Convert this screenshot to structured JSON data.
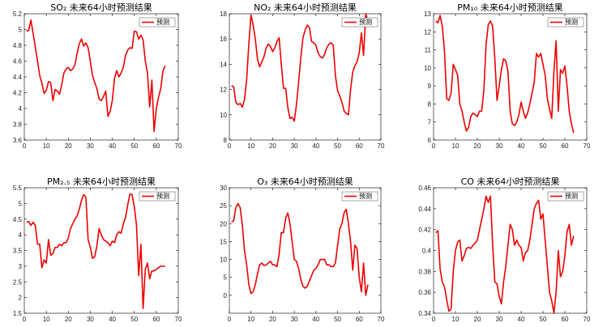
{
  "figure": {
    "background": "#ffffff",
    "line_color": "#ee0000",
    "axis_color": "#000000"
  },
  "chart_data": [
    {
      "type": "line",
      "title": "SO₂ 未来64小时预测结果",
      "xlim": [
        0,
        70
      ],
      "ylim": [
        3.6,
        5.2
      ],
      "xticks": [
        0,
        10,
        20,
        30,
        40,
        50,
        60,
        70
      ],
      "yticks": [
        3.6,
        3.8,
        4,
        4.2,
        4.4,
        4.6,
        4.8,
        5,
        5.2
      ],
      "legend": "预测",
      "legend_position": "top-right",
      "grid": false,
      "series": [
        {
          "name": "预测",
          "x": [
            1,
            2,
            3,
            4,
            5,
            6,
            7,
            8,
            9,
            10,
            11,
            12,
            13,
            14,
            15,
            16,
            17,
            18,
            19,
            20,
            21,
            22,
            23,
            24,
            25,
            26,
            27,
            28,
            29,
            30,
            31,
            32,
            33,
            34,
            35,
            36,
            37,
            38,
            39,
            40,
            41,
            42,
            43,
            44,
            45,
            46,
            47,
            48,
            49,
            50,
            51,
            52,
            53,
            54,
            55,
            56,
            57,
            58,
            59,
            60,
            61,
            62,
            63,
            64
          ],
          "values": [
            4.98,
            4.99,
            5.12,
            4.95,
            4.78,
            4.6,
            4.42,
            4.32,
            4.19,
            4.23,
            4.34,
            4.33,
            4.1,
            4.24,
            4.22,
            4.18,
            4.3,
            4.45,
            4.5,
            4.52,
            4.48,
            4.5,
            4.55,
            4.7,
            4.82,
            4.88,
            4.79,
            4.83,
            4.77,
            4.6,
            4.42,
            4.33,
            4.25,
            4.12,
            4.1,
            4.15,
            4.22,
            3.9,
            3.96,
            4.1,
            4.38,
            4.48,
            4.4,
            4.45,
            4.52,
            4.67,
            4.74,
            4.77,
            4.76,
            4.98,
            4.97,
            4.88,
            4.93,
            4.87,
            4.6,
            4.45,
            4.02,
            4.36,
            3.71,
            4.0,
            4.14,
            4.25,
            4.47,
            4.54
          ]
        }
      ]
    },
    {
      "type": "line",
      "title": "NO₂ 未来64小时预测结果",
      "xlim": [
        0,
        70
      ],
      "ylim": [
        8,
        18
      ],
      "xticks": [
        0,
        10,
        20,
        30,
        40,
        50,
        60,
        70
      ],
      "yticks": [
        8,
        10,
        12,
        14,
        16,
        18
      ],
      "legend": "预测",
      "legend_position": "top-right",
      "grid": false,
      "series": [
        {
          "name": "预测",
          "x": [
            1,
            2,
            3,
            4,
            5,
            6,
            7,
            8,
            9,
            10,
            11,
            12,
            13,
            14,
            15,
            16,
            17,
            18,
            19,
            20,
            21,
            22,
            23,
            24,
            25,
            26,
            27,
            28,
            29,
            30,
            31,
            32,
            33,
            34,
            35,
            36,
            37,
            38,
            39,
            40,
            41,
            42,
            43,
            44,
            45,
            46,
            47,
            48,
            49,
            50,
            51,
            52,
            53,
            54,
            55,
            56,
            57,
            58,
            59,
            60,
            61,
            62,
            63,
            64
          ],
          "values": [
            12.3,
            12.2,
            11.0,
            10.8,
            10.9,
            10.6,
            11.2,
            12.8,
            15.6,
            17.9,
            17.1,
            16.0,
            14.4,
            13.8,
            14.2,
            14.6,
            15.3,
            15.6,
            15.4,
            15.0,
            15.3,
            15.8,
            16.1,
            14.0,
            12.1,
            12.1,
            10.6,
            9.7,
            9.8,
            9.5,
            10.8,
            12.6,
            14.5,
            16.1,
            16.7,
            17.1,
            16.9,
            15.8,
            15.7,
            15.5,
            14.9,
            14.6,
            14.5,
            14.8,
            15.3,
            15.6,
            15.7,
            15.5,
            13.1,
            11.9,
            11.5,
            11.0,
            10.3,
            10.1,
            10.0,
            12.0,
            13.4,
            13.9,
            14.2,
            14.9,
            16.5,
            14.7,
            18.0,
            17.4
          ]
        }
      ]
    },
    {
      "type": "line",
      "title": "PM₁₀ 未来64小时预测结果",
      "xlim": [
        0,
        70
      ],
      "ylim": [
        6,
        13
      ],
      "xticks": [
        0,
        10,
        20,
        30,
        40,
        50,
        60,
        70
      ],
      "yticks": [
        6,
        7,
        8,
        9,
        10,
        11,
        12,
        13
      ],
      "legend": "预测",
      "legend_position": "top-right",
      "grid": false,
      "series": [
        {
          "name": "预测",
          "x": [
            1,
            2,
            3,
            4,
            5,
            6,
            7,
            8,
            9,
            10,
            11,
            12,
            13,
            14,
            15,
            16,
            17,
            18,
            19,
            20,
            21,
            22,
            23,
            24,
            25,
            26,
            27,
            28,
            29,
            30,
            31,
            32,
            33,
            34,
            35,
            36,
            37,
            38,
            39,
            40,
            41,
            42,
            43,
            44,
            45,
            46,
            47,
            48,
            49,
            50,
            51,
            52,
            53,
            54,
            55,
            56,
            57,
            58,
            59,
            60,
            61,
            62,
            63,
            64
          ],
          "values": [
            12.6,
            12.5,
            12.9,
            12.3,
            10.9,
            8.3,
            8.2,
            8.6,
            10.2,
            9.9,
            9.6,
            8.0,
            7.6,
            7.0,
            6.5,
            6.7,
            7.3,
            7.5,
            7.4,
            7.3,
            7.6,
            7.6,
            8.8,
            11.3,
            12.4,
            12.6,
            12.3,
            10.5,
            8.2,
            9.0,
            9.9,
            10.5,
            10.4,
            9.8,
            7.6,
            6.9,
            6.8,
            7.0,
            7.4,
            8.1,
            7.6,
            7.2,
            7.5,
            8.0,
            8.6,
            9.2,
            10.8,
            10.6,
            10.8,
            10.2,
            9.6,
            8.3,
            7.7,
            7.2,
            9.8,
            11.5,
            7.6,
            9.9,
            9.7,
            10.1,
            9.0,
            7.6,
            6.9,
            6.4
          ]
        }
      ]
    },
    {
      "type": "line",
      "title": "PM₂.₅ 未来64小时预测结果",
      "xlim": [
        0,
        70
      ],
      "ylim": [
        1.5,
        5.5
      ],
      "xticks": [
        0,
        10,
        20,
        30,
        40,
        50,
        60,
        70
      ],
      "yticks": [
        1.5,
        2,
        2.5,
        3,
        3.5,
        4,
        4.5,
        5,
        5.5
      ],
      "legend": "预测",
      "legend_position": "top-right",
      "grid": false,
      "series": [
        {
          "name": "预测",
          "x": [
            1,
            2,
            3,
            4,
            5,
            6,
            7,
            8,
            9,
            10,
            11,
            12,
            13,
            14,
            15,
            16,
            17,
            18,
            19,
            20,
            21,
            22,
            23,
            24,
            25,
            26,
            27,
            28,
            29,
            30,
            31,
            32,
            33,
            34,
            35,
            36,
            37,
            38,
            39,
            40,
            41,
            42,
            43,
            44,
            45,
            46,
            47,
            48,
            49,
            50,
            51,
            52,
            53,
            54,
            55,
            56,
            57,
            58,
            59,
            60,
            61,
            62,
            63,
            64
          ],
          "values": [
            4.42,
            4.42,
            4.3,
            4.4,
            4.3,
            3.7,
            3.7,
            2.95,
            3.2,
            3.1,
            3.85,
            3.35,
            3.4,
            3.6,
            3.6,
            3.7,
            3.65,
            3.75,
            3.75,
            3.9,
            4.2,
            4.35,
            4.5,
            4.6,
            4.82,
            5.1,
            5.28,
            5.2,
            3.85,
            3.6,
            3.25,
            3.3,
            3.65,
            4.2,
            4.0,
            3.85,
            3.8,
            3.75,
            3.65,
            3.8,
            3.75,
            4.0,
            4.1,
            4.05,
            4.35,
            4.55,
            4.95,
            5.3,
            5.28,
            4.9,
            4.3,
            2.7,
            3.7,
            1.65,
            2.9,
            3.1,
            2.6,
            2.85,
            2.85,
            2.9,
            2.95,
            3.0,
            3.0,
            3.0
          ]
        }
      ]
    },
    {
      "type": "line",
      "title": "O₃ 未来64小时预测结果",
      "xlim": [
        0,
        70
      ],
      "ylim": [
        -5,
        30
      ],
      "xticks": [
        0,
        10,
        20,
        30,
        40,
        50,
        60,
        70
      ],
      "yticks": [
        0,
        5,
        10,
        15,
        20,
        25,
        30
      ],
      "legend": "预测",
      "legend_position": "top-right",
      "grid": false,
      "series": [
        {
          "name": "预测",
          "x": [
            1,
            2,
            3,
            4,
            5,
            6,
            7,
            8,
            9,
            10,
            11,
            12,
            13,
            14,
            15,
            16,
            17,
            18,
            19,
            20,
            21,
            22,
            23,
            24,
            25,
            26,
            27,
            28,
            29,
            30,
            31,
            32,
            33,
            34,
            35,
            36,
            37,
            38,
            39,
            40,
            41,
            42,
            43,
            44,
            45,
            46,
            47,
            48,
            49,
            50,
            51,
            52,
            53,
            54,
            55,
            56,
            57,
            58,
            59,
            60,
            61,
            62,
            63,
            64
          ],
          "values": [
            20.5,
            20.8,
            24.5,
            25.6,
            24.5,
            19.6,
            12.5,
            8.5,
            3.0,
            0.5,
            1.0,
            3.0,
            6.0,
            8.5,
            9.0,
            8.3,
            8.5,
            9.0,
            9.5,
            8.5,
            8.5,
            8.0,
            11.5,
            17.5,
            17.5,
            21.5,
            23.0,
            20.0,
            15.0,
            10.0,
            9.5,
            7.5,
            4.5,
            2.5,
            2.0,
            2.5,
            4.0,
            5.5,
            7.0,
            7.5,
            8.5,
            10.0,
            10.0,
            10.0,
            8.5,
            8.5,
            8.0,
            8.0,
            9.0,
            14.0,
            18.5,
            20.0,
            23.0,
            24.0,
            20.0,
            15.0,
            7.0,
            14.0,
            13.0,
            5.0,
            1.0,
            9.0,
            0.0,
            3.0
          ]
        }
      ]
    },
    {
      "type": "line",
      "title": "CO 未来64小时预测结果",
      "xlim": [
        0,
        70
      ],
      "ylim": [
        0.34,
        0.46
      ],
      "xticks": [
        0,
        10,
        20,
        30,
        40,
        50,
        60,
        70
      ],
      "yticks": [
        0.34,
        0.36,
        0.38,
        0.4,
        0.42,
        0.44,
        0.46
      ],
      "legend": "预测",
      "legend_position": "top-right",
      "grid": false,
      "series": [
        {
          "name": "预测",
          "x": [
            1,
            2,
            3,
            4,
            5,
            6,
            7,
            8,
            9,
            10,
            11,
            12,
            13,
            14,
            15,
            16,
            17,
            18,
            19,
            20,
            21,
            22,
            23,
            24,
            25,
            26,
            27,
            28,
            29,
            30,
            31,
            32,
            33,
            34,
            35,
            36,
            37,
            38,
            39,
            40,
            41,
            42,
            43,
            44,
            45,
            46,
            47,
            48,
            49,
            50,
            51,
            52,
            53,
            54,
            55,
            56,
            57,
            58,
            59,
            60,
            61,
            62,
            63,
            64
          ],
          "values": [
            0.417,
            0.419,
            0.382,
            0.37,
            0.365,
            0.353,
            0.342,
            0.344,
            0.38,
            0.4,
            0.408,
            0.41,
            0.39,
            0.395,
            0.402,
            0.403,
            0.402,
            0.405,
            0.407,
            0.41,
            0.42,
            0.43,
            0.44,
            0.452,
            0.446,
            0.452,
            0.405,
            0.37,
            0.368,
            0.356,
            0.349,
            0.37,
            0.385,
            0.405,
            0.425,
            0.42,
            0.405,
            0.41,
            0.405,
            0.403,
            0.39,
            0.398,
            0.4,
            0.41,
            0.425,
            0.44,
            0.445,
            0.448,
            0.43,
            0.435,
            0.41,
            0.385,
            0.36,
            0.352,
            0.34,
            0.36,
            0.4,
            0.375,
            0.38,
            0.395,
            0.418,
            0.425,
            0.405,
            0.414
          ]
        }
      ]
    }
  ]
}
